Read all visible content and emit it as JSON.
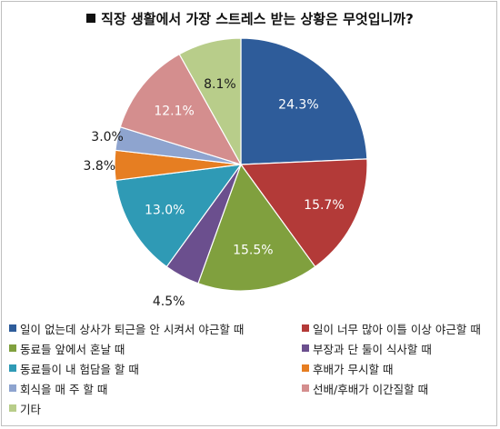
{
  "chart_data": {
    "type": "pie",
    "title": "직장 생활에서 가장 스트레스 받는 상황은 무엇입니까?",
    "legend_position": "bottom",
    "slices": [
      {
        "name": "일이 없는데 상사가 퇴근을 안 시켜서 야근할 때",
        "value": 24.3,
        "label": "24.3%",
        "color": "#2E5C9A"
      },
      {
        "name": "일이 너무 많아 이틀 이상 야근할 때",
        "value": 15.7,
        "label": "15.7%",
        "color": "#B33A38"
      },
      {
        "name": "동료들 앞에서 혼날 때",
        "value": 15.5,
        "label": "15.5%",
        "color": "#80A03E"
      },
      {
        "name": "부장과 단 둘이 식사할 때",
        "value": 4.5,
        "label": "4.5%",
        "color": "#6B4F8E"
      },
      {
        "name": "동료들이 내 험담을 할 때",
        "value": 13.0,
        "label": "13.0%",
        "color": "#2F9AB5"
      },
      {
        "name": "후배가 무시할 때",
        "value": 3.8,
        "label": "3.8%",
        "color": "#E67E22"
      },
      {
        "name": "회식을 매 주 할 때",
        "value": 3.0,
        "label": "3.0%",
        "color": "#8EA4CF"
      },
      {
        "name": "선배/후배가 이간질할 때",
        "value": 12.1,
        "label": "12.1%",
        "color": "#D48E8E"
      },
      {
        "name": "기타",
        "value": 8.1,
        "label": "8.1%",
        "color": "#B8CD8A"
      }
    ]
  }
}
